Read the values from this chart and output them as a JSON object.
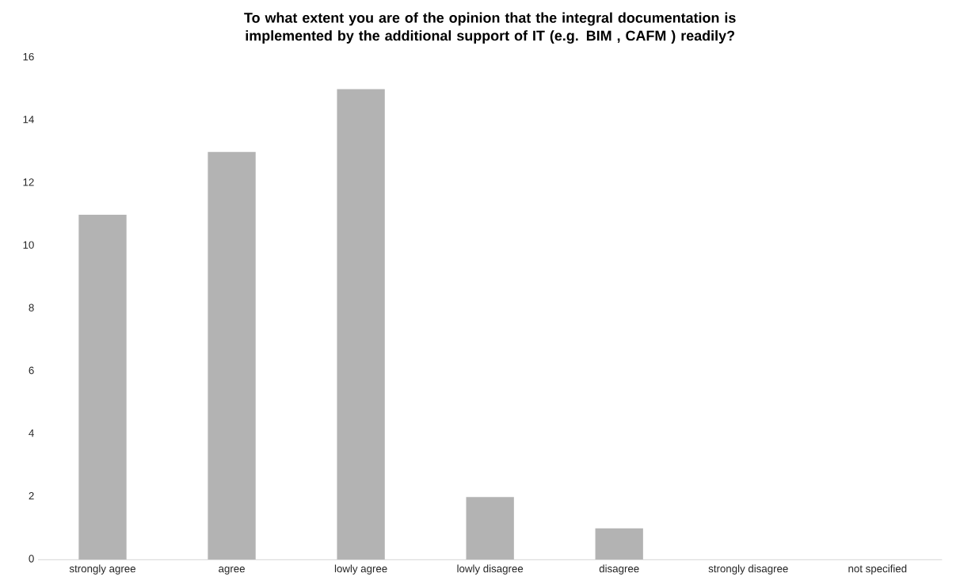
{
  "chart_data": {
    "type": "bar",
    "title": "To what extent you are of the opinion that the integral documentation is implemented by the additional support of IT (e.g. BIM , CAFM ) readily?",
    "categories": [
      "strongly agree",
      "agree",
      "lowly agree",
      "lowly disagree",
      "disagree",
      "strongly disagree",
      "not specified"
    ],
    "values": [
      11,
      13,
      15,
      2,
      1,
      0,
      0
    ],
    "color": "#b3b3b3",
    "ylim": [
      0,
      16
    ],
    "yticks": [
      0,
      2,
      4,
      6,
      8,
      10,
      12,
      14,
      16
    ],
    "grid": false
  }
}
